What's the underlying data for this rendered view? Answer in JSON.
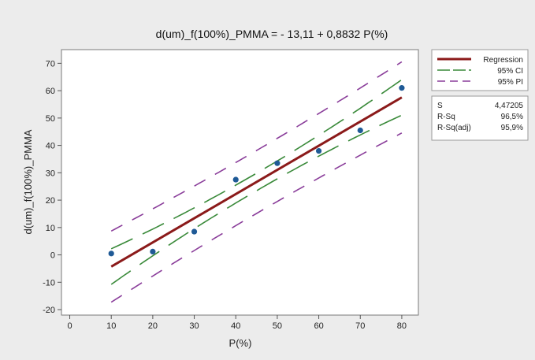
{
  "chart_data": {
    "type": "scatter",
    "title": "d(um)_f(100%)_PMMA = - 13,11 + 0,8832 P(%)",
    "xlabel": "P(%)",
    "ylabel": "d(um)_f(100%)_PMMA",
    "xlim": [
      -2,
      84
    ],
    "ylim": [
      -22,
      75
    ],
    "x_ticks": [
      "0",
      "10",
      "20",
      "30",
      "40",
      "50",
      "60",
      "70",
      "80"
    ],
    "y_ticks": [
      "-20",
      "-10",
      "0",
      "10",
      "20",
      "30",
      "40",
      "50",
      "60",
      "70"
    ],
    "grid": false,
    "legend_position": "right",
    "points": [
      {
        "x": 10,
        "y": 0.5
      },
      {
        "x": 20,
        "y": 1.2
      },
      {
        "x": 30,
        "y": 8.5
      },
      {
        "x": 40,
        "y": 27.5
      },
      {
        "x": 50,
        "y": 33.5
      },
      {
        "x": 60,
        "y": 38
      },
      {
        "x": 70,
        "y": 45.5
      },
      {
        "x": 80,
        "y": 61
      }
    ],
    "regression": {
      "intercept": -13.11,
      "slope": 0.8832,
      "x_range": [
        10,
        80
      ]
    },
    "ci_half_width": {
      "at_mean": 3.2,
      "at_ends": 6.5
    },
    "pi_half_width": {
      "at_mean": 11.5,
      "at_ends": 13.0
    },
    "legend": [
      {
        "label": "Regression",
        "color": "#8b1a1a",
        "style": "solid"
      },
      {
        "label": "95% CI",
        "color": "#3a8a3a",
        "style": "dashed"
      },
      {
        "label": "95% PI",
        "color": "#8a3d9a",
        "style": "dashed"
      }
    ],
    "stats": [
      {
        "label": "S",
        "value": "4,47205"
      },
      {
        "label": "R-Sq",
        "value": "96,5%"
      },
      {
        "label": "R-Sq(adj)",
        "value": "95,9%"
      }
    ],
    "colors": {
      "points": "#1f5a96",
      "regression": "#8b1a1a",
      "ci": "#3a8a3a",
      "pi": "#8a3d9a"
    }
  }
}
